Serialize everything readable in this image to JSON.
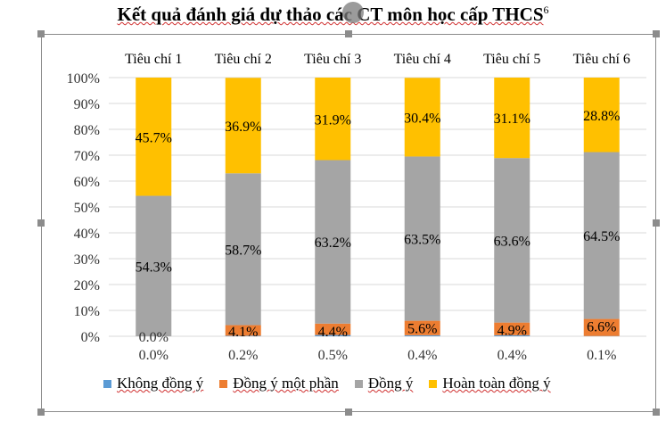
{
  "chart_data": {
    "type": "bar",
    "stacked": true,
    "percent_stacked": true,
    "title": "Kết quả đánh giá dự thảo các CT môn học cấp THCS",
    "title_sup": "6",
    "categories": [
      "Tiêu chí 1",
      "Tiêu chí 2",
      "Tiêu chí 3",
      "Tiêu chí 4",
      "Tiêu chí 5",
      "Tiêu chí 6"
    ],
    "category_axis_position": "top",
    "ylim": [
      0,
      100
    ],
    "yticks": [
      "0%",
      "10%",
      "20%",
      "30%",
      "40%",
      "50%",
      "60%",
      "70%",
      "80%",
      "90%",
      "100%"
    ],
    "grid": true,
    "legend_position": "bottom",
    "series": [
      {
        "name": "Không đồng ý",
        "color": "#5b9bd5",
        "values": [
          0.0,
          0.2,
          0.5,
          0.4,
          0.4,
          0.1
        ],
        "labels": [
          "0.0%",
          "0.2%",
          "0.5%",
          "0.4%",
          "0.4%",
          "0.1%"
        ]
      },
      {
        "name": "Đồng ý một phần",
        "color": "#ed7d31",
        "values": [
          0.0,
          4.1,
          4.4,
          5.6,
          4.9,
          6.6
        ],
        "labels": [
          "",
          "4.1%",
          "4.4%",
          "5.6%",
          "4.9%",
          "6.6%"
        ]
      },
      {
        "name": "Đồng ý",
        "color": "#a5a5a5",
        "values": [
          54.3,
          58.7,
          63.2,
          63.5,
          63.6,
          64.5
        ],
        "labels": [
          "54.3%",
          "58.7%",
          "63.2%",
          "63.5%",
          "63.6%",
          "64.5%"
        ]
      },
      {
        "name": "Hoàn toàn đồng ý",
        "color": "#ffc000",
        "values": [
          45.7,
          36.9,
          31.9,
          30.4,
          31.1,
          28.8
        ],
        "labels": [
          "45.7%",
          "36.9%",
          "31.9%",
          "30.4%",
          "31.1%",
          "28.8%"
        ]
      }
    ],
    "zero_label": "0.0%"
  }
}
